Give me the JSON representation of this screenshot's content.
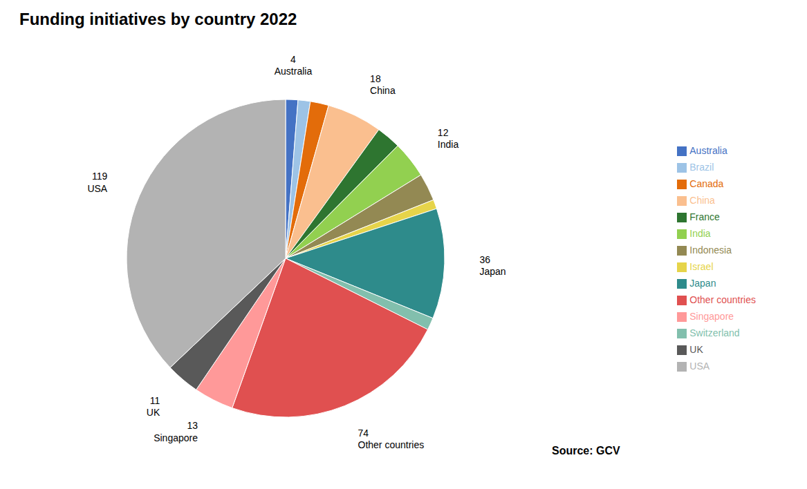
{
  "chart_data": {
    "type": "pie",
    "title": "Funding initiatives by country 2022",
    "annotations": [
      "Source: GCV"
    ],
    "categories": [
      "Australia",
      "Brazil",
      "Canada",
      "China",
      "France",
      "India",
      "Indonesia",
      "Israel",
      "Japan",
      "Switzerland",
      "Other countries",
      "Singapore",
      "UK",
      "USA"
    ],
    "values": [
      4,
      4,
      6,
      18,
      8,
      12,
      9,
      3,
      36,
      4,
      74,
      13,
      11,
      119
    ],
    "value_labels": [
      "4",
      null,
      null,
      "18",
      null,
      "12",
      null,
      null,
      "36",
      null,
      "74",
      "13",
      "11",
      "119"
    ],
    "colors": [
      "#4472c4",
      "#9dc3e6",
      "#e36c0a",
      "#fabf8f",
      "#2e7530",
      "#92d050",
      "#938953",
      "#e6d44a",
      "#2e8b8b",
      "#82bfad",
      "#e05050",
      "#ff9999",
      "#595959",
      "#b3b3b3"
    ],
    "data_labels": true,
    "legend": "right"
  }
}
